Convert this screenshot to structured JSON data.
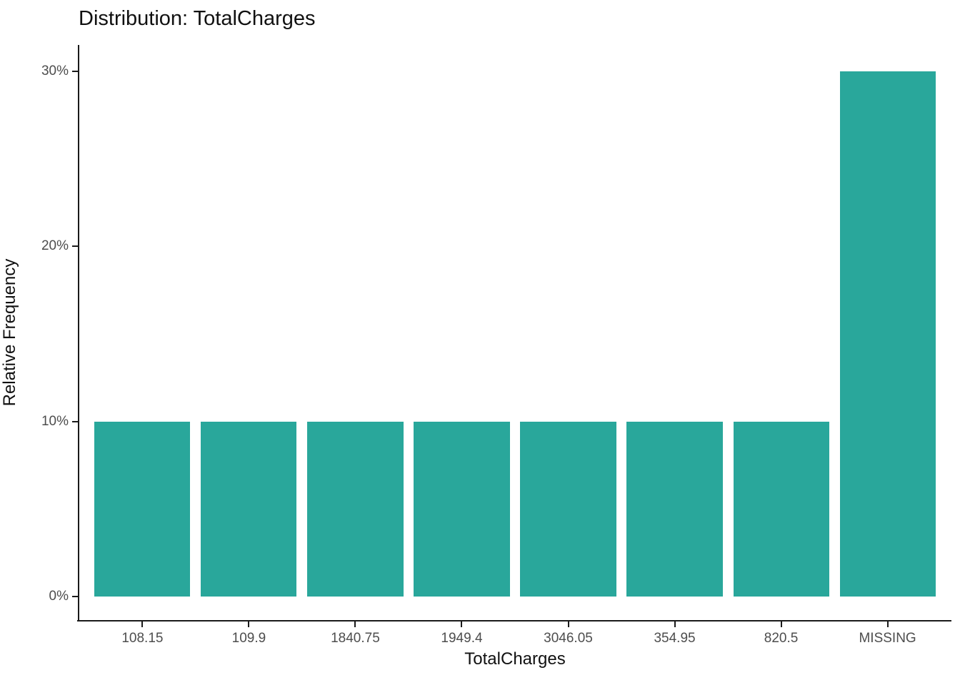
{
  "title": "Distribution: TotalCharges",
  "chart_data": {
    "type": "bar",
    "title": "Distribution: TotalCharges",
    "xlabel": "TotalCharges",
    "ylabel": "Relative Frequency",
    "categories": [
      "108.15",
      "109.9",
      "1840.75",
      "1949.4",
      "3046.05",
      "354.95",
      "820.5",
      "MISSING"
    ],
    "values": [
      10,
      10,
      10,
      10,
      10,
      10,
      10,
      30
    ],
    "value_unit": "percent",
    "y_tick_values": [
      0,
      10,
      20,
      30
    ],
    "y_tick_labels": [
      "0%",
      "10%",
      "20%",
      "30%"
    ],
    "ylim": [
      0,
      31.5
    ],
    "grid": false,
    "legend_position": "none",
    "bar_color": "#29a79b",
    "axis_line_color": "#1a1a1a",
    "tick_label_color": "#4d4d4d",
    "title_color": "#111111",
    "background_color": "#ffffff"
  }
}
